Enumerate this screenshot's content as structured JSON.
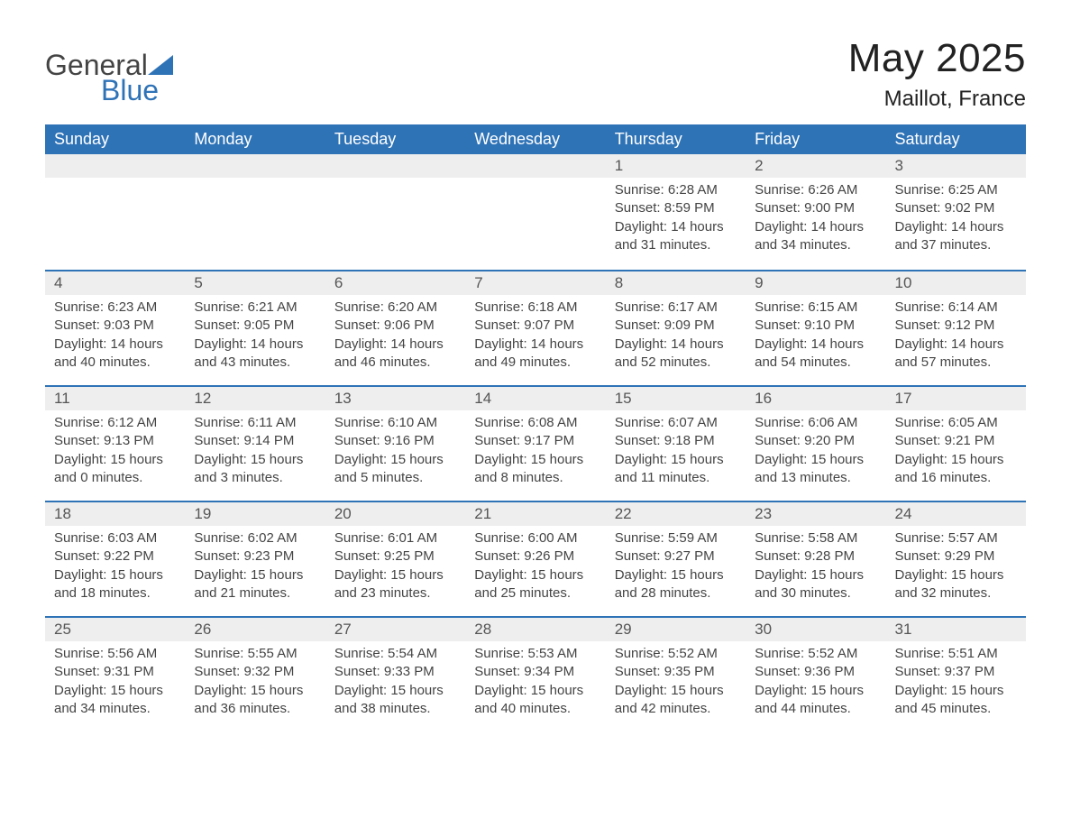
{
  "brand": {
    "name_part1": "General",
    "name_part2": "Blue",
    "color_primary": "#2f73b7",
    "color_text": "#444444"
  },
  "title": "May 2025",
  "location": "Maillot, France",
  "colors": {
    "header_bg": "#2f73b7",
    "header_text": "#ffffff",
    "daynum_bg": "#eeeeee",
    "row_border": "#2f73b7",
    "body_text": "#444444",
    "page_bg": "#ffffff"
  },
  "weekday_headers": [
    "Sunday",
    "Monday",
    "Tuesday",
    "Wednesday",
    "Thursday",
    "Friday",
    "Saturday"
  ],
  "weeks": [
    [
      null,
      null,
      null,
      null,
      {
        "day": "1",
        "sunrise": "6:28 AM",
        "sunset": "8:59 PM",
        "daylight": "14 hours and 31 minutes."
      },
      {
        "day": "2",
        "sunrise": "6:26 AM",
        "sunset": "9:00 PM",
        "daylight": "14 hours and 34 minutes."
      },
      {
        "day": "3",
        "sunrise": "6:25 AM",
        "sunset": "9:02 PM",
        "daylight": "14 hours and 37 minutes."
      }
    ],
    [
      {
        "day": "4",
        "sunrise": "6:23 AM",
        "sunset": "9:03 PM",
        "daylight": "14 hours and 40 minutes."
      },
      {
        "day": "5",
        "sunrise": "6:21 AM",
        "sunset": "9:05 PM",
        "daylight": "14 hours and 43 minutes."
      },
      {
        "day": "6",
        "sunrise": "6:20 AM",
        "sunset": "9:06 PM",
        "daylight": "14 hours and 46 minutes."
      },
      {
        "day": "7",
        "sunrise": "6:18 AM",
        "sunset": "9:07 PM",
        "daylight": "14 hours and 49 minutes."
      },
      {
        "day": "8",
        "sunrise": "6:17 AM",
        "sunset": "9:09 PM",
        "daylight": "14 hours and 52 minutes."
      },
      {
        "day": "9",
        "sunrise": "6:15 AM",
        "sunset": "9:10 PM",
        "daylight": "14 hours and 54 minutes."
      },
      {
        "day": "10",
        "sunrise": "6:14 AM",
        "sunset": "9:12 PM",
        "daylight": "14 hours and 57 minutes."
      }
    ],
    [
      {
        "day": "11",
        "sunrise": "6:12 AM",
        "sunset": "9:13 PM",
        "daylight": "15 hours and 0 minutes."
      },
      {
        "day": "12",
        "sunrise": "6:11 AM",
        "sunset": "9:14 PM",
        "daylight": "15 hours and 3 minutes."
      },
      {
        "day": "13",
        "sunrise": "6:10 AM",
        "sunset": "9:16 PM",
        "daylight": "15 hours and 5 minutes."
      },
      {
        "day": "14",
        "sunrise": "6:08 AM",
        "sunset": "9:17 PM",
        "daylight": "15 hours and 8 minutes."
      },
      {
        "day": "15",
        "sunrise": "6:07 AM",
        "sunset": "9:18 PM",
        "daylight": "15 hours and 11 minutes."
      },
      {
        "day": "16",
        "sunrise": "6:06 AM",
        "sunset": "9:20 PM",
        "daylight": "15 hours and 13 minutes."
      },
      {
        "day": "17",
        "sunrise": "6:05 AM",
        "sunset": "9:21 PM",
        "daylight": "15 hours and 16 minutes."
      }
    ],
    [
      {
        "day": "18",
        "sunrise": "6:03 AM",
        "sunset": "9:22 PM",
        "daylight": "15 hours and 18 minutes."
      },
      {
        "day": "19",
        "sunrise": "6:02 AM",
        "sunset": "9:23 PM",
        "daylight": "15 hours and 21 minutes."
      },
      {
        "day": "20",
        "sunrise": "6:01 AM",
        "sunset": "9:25 PM",
        "daylight": "15 hours and 23 minutes."
      },
      {
        "day": "21",
        "sunrise": "6:00 AM",
        "sunset": "9:26 PM",
        "daylight": "15 hours and 25 minutes."
      },
      {
        "day": "22",
        "sunrise": "5:59 AM",
        "sunset": "9:27 PM",
        "daylight": "15 hours and 28 minutes."
      },
      {
        "day": "23",
        "sunrise": "5:58 AM",
        "sunset": "9:28 PM",
        "daylight": "15 hours and 30 minutes."
      },
      {
        "day": "24",
        "sunrise": "5:57 AM",
        "sunset": "9:29 PM",
        "daylight": "15 hours and 32 minutes."
      }
    ],
    [
      {
        "day": "25",
        "sunrise": "5:56 AM",
        "sunset": "9:31 PM",
        "daylight": "15 hours and 34 minutes."
      },
      {
        "day": "26",
        "sunrise": "5:55 AM",
        "sunset": "9:32 PM",
        "daylight": "15 hours and 36 minutes."
      },
      {
        "day": "27",
        "sunrise": "5:54 AM",
        "sunset": "9:33 PM",
        "daylight": "15 hours and 38 minutes."
      },
      {
        "day": "28",
        "sunrise": "5:53 AM",
        "sunset": "9:34 PM",
        "daylight": "15 hours and 40 minutes."
      },
      {
        "day": "29",
        "sunrise": "5:52 AM",
        "sunset": "9:35 PM",
        "daylight": "15 hours and 42 minutes."
      },
      {
        "day": "30",
        "sunrise": "5:52 AM",
        "sunset": "9:36 PM",
        "daylight": "15 hours and 44 minutes."
      },
      {
        "day": "31",
        "sunrise": "5:51 AM",
        "sunset": "9:37 PM",
        "daylight": "15 hours and 45 minutes."
      }
    ]
  ],
  "labels": {
    "sunrise": "Sunrise:",
    "sunset": "Sunset:",
    "daylight": "Daylight:"
  }
}
